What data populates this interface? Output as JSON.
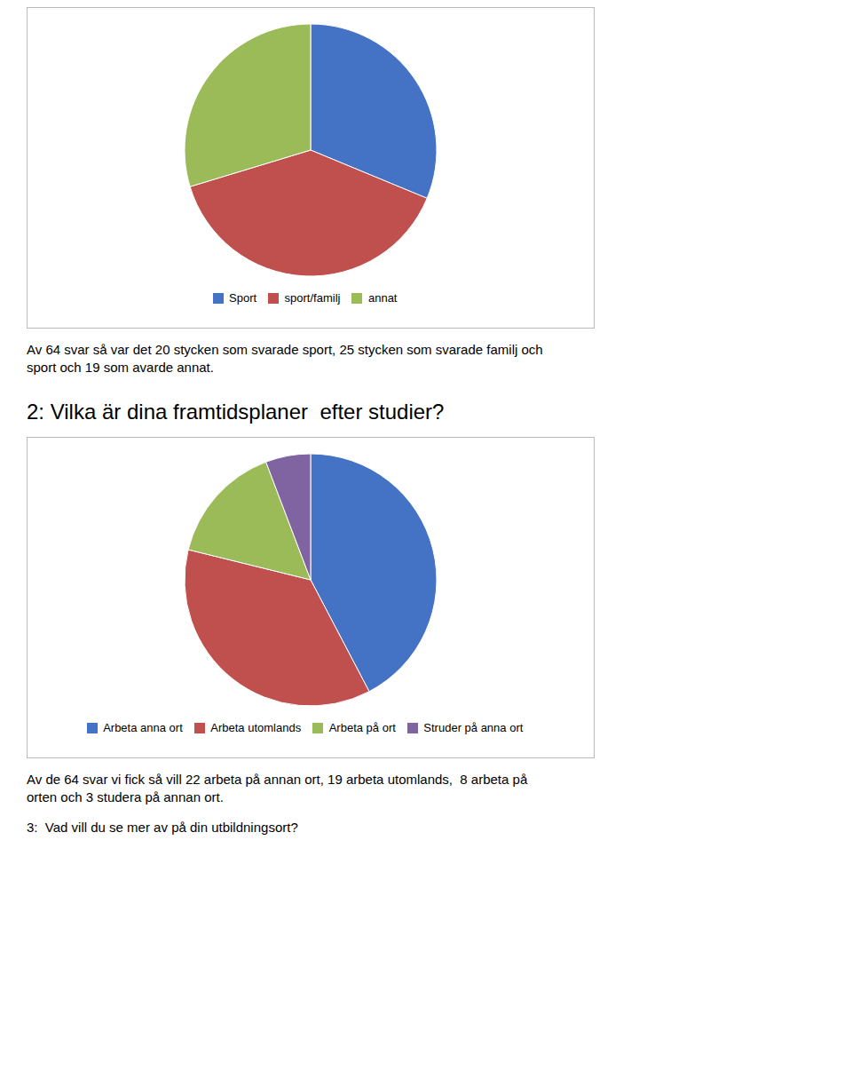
{
  "chart_data": [
    {
      "type": "pie",
      "categories": [
        "Sport",
        "sport/familj",
        "annat"
      ],
      "values": [
        20,
        25,
        19
      ],
      "colors": [
        "#4472C4",
        "#C0504D",
        "#9BBB59"
      ],
      "annotations": [
        "Av 64 svar så var det 20 stycken som svarade sport, 25 stycken som svarade familj och\nsport och 19 som avarde annat."
      ]
    },
    {
      "type": "pie",
      "title": "2: Vilka är dina framtidsplaner  efter studier?",
      "categories": [
        "Arbeta anna ort",
        "Arbeta utomlands",
        "Arbeta på ort",
        "Struder på anna ort"
      ],
      "values": [
        22,
        19,
        8,
        3
      ],
      "colors": [
        "#4472C4",
        "#C0504D",
        "#9BBB59",
        "#8064A2"
      ],
      "annotations": [
        "Av de 64 svar vi fick så vill 22 arbeta på annan ort, 19 arbeta utomlands,  8 arbeta på\norten och 3 studera på annan ort.",
        "3:  Vad vill du se mer av på din utbildningsort?"
      ]
    }
  ]
}
